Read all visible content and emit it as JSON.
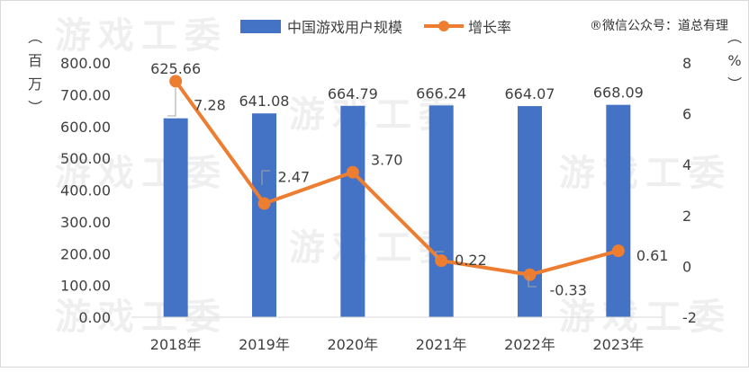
{
  "chart_data": {
    "type": "bar",
    "categories": [
      "2018年",
      "2019年",
      "2020年",
      "2021年",
      "2022年",
      "2023年"
    ],
    "series": [
      {
        "name": "中国游戏用户规模",
        "type": "bar",
        "axis": "left",
        "values": [
          625.66,
          641.08,
          664.79,
          666.24,
          664.07,
          668.09
        ],
        "labels": [
          "625.66",
          "641.08",
          "664.79",
          "666.24",
          "664.07",
          "668.09"
        ],
        "color": "#4472c4"
      },
      {
        "name": "增长率",
        "type": "line",
        "axis": "right",
        "values": [
          7.28,
          2.47,
          3.7,
          0.22,
          -0.33,
          0.61
        ],
        "labels": [
          "7.28",
          "2.47",
          "3.70",
          "0.22",
          "-0.33",
          "0.61"
        ],
        "color": "#ed7d31"
      }
    ],
    "y_left": {
      "ylim": [
        0,
        800
      ],
      "ticks": [
        "0.00",
        "100.00",
        "200.00",
        "300.00",
        "400.00",
        "500.00",
        "600.00",
        "700.00",
        "800.00"
      ],
      "unit": "（百万）"
    },
    "y_right": {
      "ylim": [
        -2,
        8
      ],
      "ticks": [
        "-2",
        "0",
        "2",
        "4",
        "6",
        "8"
      ],
      "unit": "（%）"
    },
    "legend_position": "top",
    "grid": false,
    "source": "®微信公众号：道总有理",
    "watermark": "游戏工委"
  }
}
